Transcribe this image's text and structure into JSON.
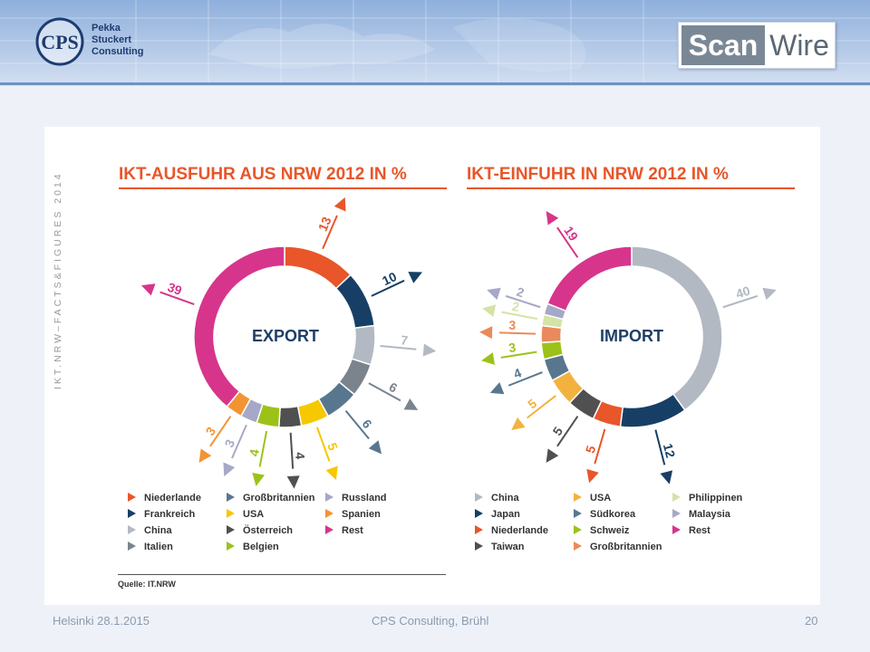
{
  "header": {
    "logo_text": "CPS",
    "company_lines": [
      "Pekka",
      "Stuckert",
      "Consulting"
    ],
    "brand_scan": "Scan",
    "brand_wire": "Wire"
  },
  "side_text": "IKT.NRW–FACTS&FIGURES 2014",
  "colors": {
    "Niederlande": "#e8562a",
    "Frankreich": "#173f66",
    "China": "#b2b9c2",
    "Italien": "#7b848d",
    "Großbritannien": "#58778f",
    "USA": "#f5c800",
    "Österreich": "#505050",
    "Belgien": "#9cc21a",
    "Russland": "#a7a8c8",
    "Spanien": "#f29434",
    "Rest": "#d6358b",
    "Japan": "#173f66",
    "Taiwan": "#505050",
    "Südkorea": "#58778f",
    "Schweiz": "#9cc21a",
    "Philippinen": "#d4e3a6",
    "Malaysia": "#a7a8c8",
    "Großbritannien_import": "#ea8a5a",
    "USA_import": "#f3b23f"
  },
  "chart_data": [
    {
      "type": "pie",
      "variant": "donut",
      "title": "IKT-AUSFUHR AUS NRW 2012 IN %",
      "center_label": "EXPORT",
      "slices": [
        {
          "label": "Niederlande",
          "value": 13,
          "shown": "13"
        },
        {
          "label": "Frankreich",
          "value": 10,
          "shown": "10"
        },
        {
          "label": "China",
          "value": 7,
          "shown": "7"
        },
        {
          "label": "Italien",
          "value": 6,
          "shown": "6"
        },
        {
          "label": "Großbritannien",
          "value": 6,
          "shown": "6"
        },
        {
          "label": "USA",
          "value": 5,
          "shown": "5"
        },
        {
          "label": "Österreich",
          "value": 4,
          "shown": "4"
        },
        {
          "label": "Belgien",
          "value": 4,
          "shown": "4"
        },
        {
          "label": "Russland",
          "value": 3,
          "shown": "3"
        },
        {
          "label": "Spanien",
          "value": 3,
          "shown": "3"
        },
        {
          "label": "Rest",
          "value": 39,
          "shown": "39"
        }
      ],
      "legend": [
        [
          "Niederlande",
          "Frankreich",
          "China",
          "Italien"
        ],
        [
          "Großbritannien",
          "USA",
          "Österreich",
          "Belgien"
        ],
        [
          "Russland",
          "Spanien",
          "Rest"
        ]
      ]
    },
    {
      "type": "pie",
      "variant": "donut",
      "title": "IKT-EINFUHR IN NRW 2012 IN %",
      "center_label": "IMPORT",
      "slices": [
        {
          "label": "China",
          "value": 40,
          "shown": "40"
        },
        {
          "label": "Japan",
          "value": 12,
          "shown": "12"
        },
        {
          "label": "Niederlande",
          "value": 5,
          "shown": "5"
        },
        {
          "label": "Taiwan",
          "value": 5,
          "shown": "5"
        },
        {
          "label": "USA",
          "value": 5,
          "shown": "5"
        },
        {
          "label": "Südkorea",
          "value": 4,
          "shown": "4"
        },
        {
          "label": "Schweiz",
          "value": 3,
          "shown": "3"
        },
        {
          "label": "Großbritannien",
          "value": 3,
          "shown": "3"
        },
        {
          "label": "Philippinen",
          "value": 2,
          "shown": "2"
        },
        {
          "label": "Malaysia",
          "value": 2,
          "shown": "2"
        },
        {
          "label": "Rest",
          "value": 19,
          "shown": "19"
        }
      ],
      "legend": [
        [
          "China",
          "Japan",
          "Niederlande",
          "Taiwan"
        ],
        [
          "USA",
          "Südkorea",
          "Schweiz",
          "Großbritannien"
        ],
        [
          "Philippinen",
          "Malaysia",
          "Rest"
        ]
      ]
    }
  ],
  "source": "Quelle: IT.NRW",
  "footer": {
    "left": "Helsinki 28.1.2015",
    "center": "CPS Consulting, Brühl",
    "right": "20"
  }
}
